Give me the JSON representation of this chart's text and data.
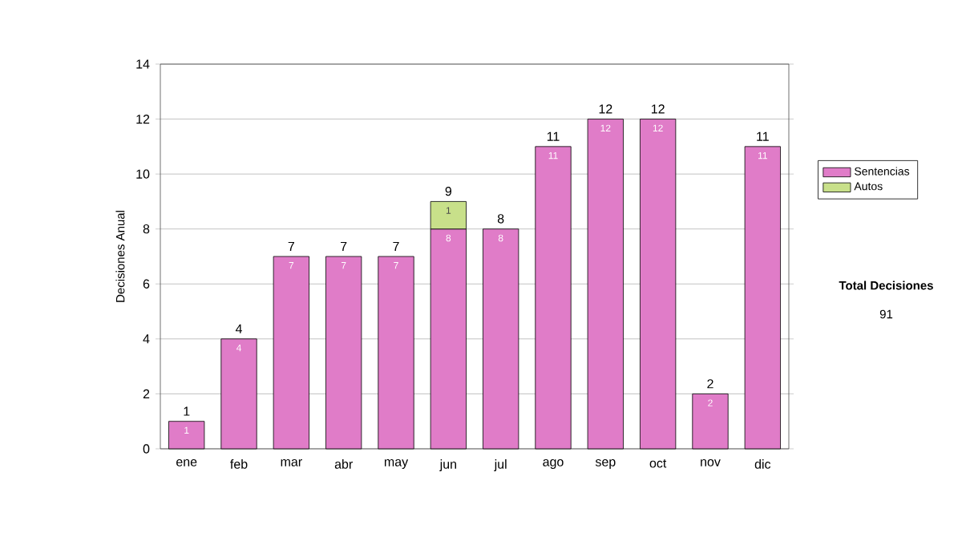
{
  "chart_data": {
    "type": "bar",
    "stacked": true,
    "ylabel": "Decisiones Anual",
    "categories": [
      "ene",
      "feb",
      "mar",
      "abr",
      "may",
      "jun",
      "jul",
      "ago",
      "sep",
      "oct",
      "nov",
      "dic"
    ],
    "series": [
      {
        "name": "Sentencias",
        "color": "#e07cc8",
        "values": [
          1,
          4,
          7,
          7,
          7,
          8,
          8,
          11,
          12,
          12,
          2,
          11
        ]
      },
      {
        "name": "Autos",
        "color": "#c8e08a",
        "values": [
          null,
          null,
          null,
          null,
          null,
          1,
          null,
          null,
          null,
          null,
          null,
          null
        ]
      }
    ],
    "totals": [
      "1",
      "4",
      "7",
      "7",
      "7",
      "9",
      "8",
      "11",
      "12",
      "12",
      "2",
      "11"
    ],
    "data_labels": true,
    "ylim": [
      0,
      14
    ],
    "yticks": [
      0,
      2,
      4,
      6,
      8,
      10,
      12,
      14
    ],
    "grid": "y",
    "legend": "right",
    "annotations": [
      "Total Decisiones",
      "91"
    ]
  }
}
